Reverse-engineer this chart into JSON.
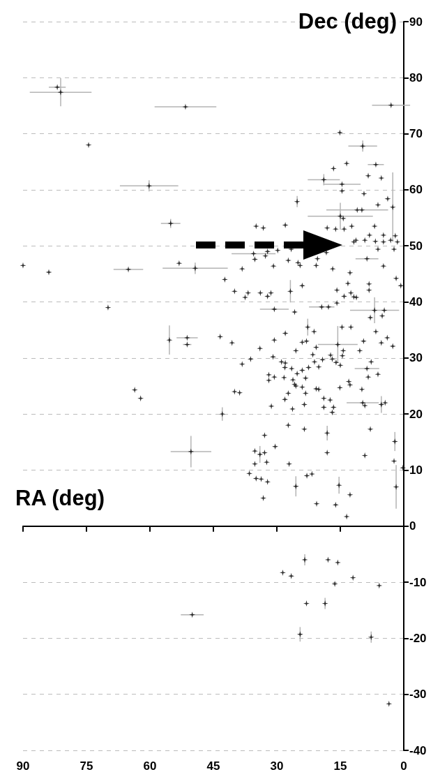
{
  "chart_data": {
    "type": "scatter",
    "xlabel": "RA (deg)",
    "ylabel": "Dec (deg)",
    "xlim": [
      90,
      0
    ],
    "xticks": [
      90,
      75,
      60,
      45,
      30,
      15,
      0
    ],
    "ylim": [
      -40,
      90
    ],
    "yticks": [
      -40,
      -30,
      -20,
      -10,
      0,
      10,
      20,
      30,
      40,
      50,
      60,
      70,
      80,
      90
    ],
    "grid": "y",
    "marker": "cross",
    "series": [
      {
        "color": "#000000",
        "x": [
          81.9,
          81.1,
          51.6,
          74.5,
          60.2,
          55.1,
          90,
          83.9,
          65.1,
          53.1,
          49.3,
          69.9,
          55.4,
          51.2,
          51.2,
          43.4,
          63.6,
          62.2,
          42.9,
          50.3,
          3.0,
          15.1,
          9.7,
          6.6,
          13.5,
          16.6,
          8.4,
          5.3,
          18.9,
          14.6,
          14.6,
          9.4,
          3.8,
          2.6,
          25.2,
          6.1,
          11.0,
          9.9,
          15.0,
          14.3,
          28.0,
          34.9,
          33.2,
          18.1,
          16.1,
          14.1,
          12.3,
          6.9,
          8.1,
          4.8,
          2.0,
          11.3,
          9.2,
          6.7,
          4.8,
          3.1,
          1.5,
          11.8,
          6.1,
          2.3,
          8.7,
          20.4,
          18.3,
          26.6,
          35.5,
          35.2,
          32.2,
          32.7,
          29.8,
          38.2,
          30.8,
          27.3,
          25.0,
          24.5,
          20.7,
          16.8,
          4.8,
          12.7,
          42.3,
          1.8,
          0.7,
          40.0,
          36.8,
          37.5,
          33.9,
          32.2,
          31.4,
          26.8,
          24.0,
          15.8,
          14.1,
          13.2,
          12.5,
          11.8,
          11.2,
          8.2,
          8.2,
          15.8,
          19.4,
          17.8,
          30.6,
          25.8,
          6.9,
          4.6,
          5.1,
          7.9,
          6.6,
          22.7,
          21.2,
          14.6,
          12.5,
          28.0,
          30.6,
          40.6,
          34.0,
          24.0,
          23.0,
          25.5,
          20.7,
          15.6,
          14.3,
          10.4,
          9.5,
          5.3,
          3.9,
          2.6,
          36.2,
          38.2,
          30.9,
          28.9,
          28.0,
          28.1,
          26.5,
          24.0,
          25.2,
          22.5,
          21.5,
          21.1,
          20.1,
          19.2,
          17.3,
          16.9,
          16.0,
          15.0,
          14.5,
          7.7,
          8.7,
          8.4,
          6.1,
          31.9,
          31.9,
          30.6,
          28.3,
          26.2,
          25.8,
          25.5,
          23.2,
          24.0,
          23.2,
          27.3,
          28.1,
          20.7,
          20.1,
          18.9,
          17.4,
          18.9,
          16.6,
          16.9,
          23.5,
          26.3,
          31.3,
          15.1,
          13.0,
          12.7,
          9.9,
          9.7,
          9.2,
          5.3,
          4.4,
          40.0,
          38.8,
          27.3,
          23.5,
          18.1,
          7.9,
          32.9,
          30.4,
          35.2,
          34.0,
          32.9,
          18.1,
          9.2,
          2.1,
          2.3,
          35.2,
          32.4,
          27.1,
          0.2,
          36.5,
          34.9,
          33.7,
          32.2,
          22.9,
          21.7,
          25.5,
          15.3,
          1.8,
          12.7,
          33.2,
          20.6,
          16.1,
          13.5,
          23.4,
          17.9,
          15.6,
          28.6,
          26.6,
          12.0,
          16.3,
          5.8,
          23.0,
          18.6,
          50.0,
          24.5,
          7.7,
          3.5
        ],
        "values": [
          78.3,
          77.4,
          74.8,
          68.0,
          60.7,
          54.0,
          46.5,
          45.3,
          45.8,
          46.9,
          46.0,
          39.0,
          33.2,
          33.6,
          32.4,
          33.8,
          24.3,
          22.8,
          20.0,
          13.3,
          75.1,
          70.2,
          67.8,
          64.5,
          64.7,
          63.8,
          62.5,
          62.1,
          61.8,
          61.0,
          59.8,
          59.3,
          58.4,
          56.9,
          57.9,
          57.3,
          56.4,
          56.4,
          55.3,
          54.9,
          53.7,
          53.5,
          53.2,
          53.2,
          53.0,
          53.0,
          53.5,
          53.5,
          51.9,
          51.9,
          51.8,
          51.0,
          51.0,
          50.8,
          50.7,
          51.0,
          50.7,
          50.7,
          49.4,
          49.4,
          47.7,
          47.7,
          48.8,
          49.4,
          48.6,
          47.6,
          49.0,
          48.2,
          49.2,
          45.9,
          46.4,
          47.4,
          47.0,
          46.5,
          46.5,
          45.9,
          46.4,
          45.2,
          44.0,
          44.2,
          42.9,
          41.9,
          41.6,
          40.8,
          41.6,
          41.0,
          41.6,
          41.9,
          42.9,
          42.1,
          41.0,
          43.3,
          41.6,
          40.9,
          40.8,
          43.2,
          42.1,
          39.8,
          39.1,
          39.1,
          38.7,
          38.2,
          38.5,
          38.5,
          37.5,
          37.2,
          34.7,
          35.5,
          34.7,
          35.5,
          35.5,
          34.4,
          33.2,
          32.7,
          31.7,
          32.8,
          33.0,
          31.3,
          31.9,
          32.4,
          31.3,
          31.3,
          33.0,
          32.7,
          33.6,
          32.1,
          29.8,
          28.9,
          30.2,
          29.3,
          29.1,
          28.3,
          28.1,
          27.8,
          27.2,
          28.3,
          30.6,
          29.3,
          28.4,
          29.7,
          30.5,
          29.8,
          29.2,
          28.7,
          30.4,
          29.3,
          28.1,
          26.6,
          27.1,
          27.0,
          26.0,
          26.6,
          26.5,
          26.1,
          25.3,
          25.0,
          26.4,
          24.8,
          23.7,
          23.7,
          22.6,
          24.5,
          24.4,
          22.8,
          22.5,
          21.2,
          21.2,
          20.3,
          21.7,
          20.9,
          21.4,
          24.7,
          25.8,
          25.2,
          24.4,
          22.0,
          21.5,
          21.7,
          22.0,
          24.0,
          23.8,
          18.0,
          17.3,
          16.6,
          17.3,
          16.2,
          14.2,
          13.4,
          12.8,
          13.1,
          13.1,
          12.6,
          15.1,
          11.6,
          11.1,
          11.4,
          11.1,
          10.4,
          9.4,
          8.5,
          8.4,
          7.9,
          9.0,
          9.3,
          7.1,
          7.3,
          7.0,
          5.6,
          5.0,
          4.0,
          3.8,
          1.7,
          -6.0,
          -6.0,
          -6.5,
          -8.3,
          -8.9,
          -9.2,
          -10.3,
          -10.6,
          -13.8,
          -13.8,
          -15.8,
          -19.3,
          -19.8,
          -31.7
        ],
        "xerrors": [
          2,
          7.3,
          7.3,
          null,
          6.9,
          2.3,
          null,
          null,
          3.5,
          null,
          7.7,
          null,
          null,
          2.5,
          1,
          null,
          null,
          null,
          null,
          4.8,
          4.5,
          null,
          3.4,
          1.9,
          null,
          null,
          null,
          null,
          3.8,
          4.4,
          null,
          null,
          null,
          null,
          null,
          null,
          7.3,
          null,
          7.7,
          null,
          null,
          null,
          null,
          null,
          null,
          null,
          null,
          null,
          null,
          null,
          null,
          null,
          null,
          null,
          null,
          null,
          null,
          null,
          null,
          null,
          2.7,
          null,
          null,
          null,
          5.2,
          null,
          null,
          null,
          null,
          null,
          null,
          null,
          null,
          null,
          null,
          null,
          null,
          null,
          null,
          null,
          null,
          null,
          null,
          null,
          null,
          null,
          null,
          null,
          null,
          null,
          null,
          null,
          null,
          null,
          null,
          null,
          null,
          null,
          3,
          null,
          3.4,
          null,
          5.8,
          null,
          null,
          null,
          null,
          null,
          null,
          null,
          null,
          null,
          null,
          null,
          null,
          null,
          null,
          null,
          null,
          4.7,
          null,
          null,
          null,
          null,
          null,
          null,
          null,
          null,
          null,
          null,
          null,
          null,
          null,
          null,
          null,
          null,
          null,
          null,
          null,
          null,
          null,
          null,
          null,
          null,
          null,
          null,
          2.9,
          null,
          null,
          null,
          null,
          null,
          null,
          null,
          null,
          null,
          null,
          null,
          null,
          null,
          null,
          null,
          null,
          null,
          null,
          null,
          null,
          null,
          null,
          null,
          null,
          null,
          null,
          null,
          null,
          3.8,
          null,
          null,
          null,
          null,
          null,
          null,
          null,
          null,
          null,
          null,
          null,
          null,
          null,
          null,
          null,
          null,
          null,
          null,
          null,
          null,
          null,
          null,
          null,
          null,
          null,
          null,
          null,
          null,
          null,
          null,
          null,
          null,
          null,
          null,
          null,
          null,
          null,
          null,
          null,
          null,
          null,
          null,
          null,
          null,
          null,
          null,
          2.7,
          null,
          null,
          null
        ],
        "errors": [
          null,
          2.5,
          null,
          null,
          1,
          0.8,
          null,
          null,
          null,
          null,
          1,
          null,
          2.6,
          null,
          null,
          null,
          null,
          null,
          1.2,
          2.8,
          null,
          null,
          1,
          null,
          null,
          null,
          null,
          null,
          1,
          null,
          null,
          null,
          null,
          6.2,
          1,
          null,
          null,
          null,
          2.4,
          null,
          null,
          null,
          null,
          null,
          null,
          null,
          null,
          null,
          null,
          null,
          null,
          null,
          null,
          null,
          null,
          null,
          null,
          null,
          null,
          null,
          null,
          null,
          null,
          null,
          null,
          null,
          null,
          null,
          null,
          null,
          null,
          null,
          null,
          null,
          null,
          null,
          null,
          null,
          null,
          null,
          null,
          null,
          null,
          null,
          null,
          null,
          null,
          2,
          null,
          null,
          null,
          null,
          null,
          null,
          null,
          null,
          null,
          null,
          null,
          null,
          null,
          null,
          2.3,
          null,
          null,
          null,
          null,
          1.5,
          null,
          null,
          null,
          null,
          null,
          null,
          null,
          null,
          null,
          null,
          null,
          3.3,
          null,
          null,
          null,
          null,
          null,
          null,
          null,
          null,
          null,
          null,
          null,
          null,
          null,
          null,
          null,
          null,
          null,
          null,
          null,
          null,
          null,
          null,
          null,
          null,
          null,
          null,
          null,
          null,
          null,
          null,
          null,
          null,
          null,
          null,
          null,
          null,
          null,
          null,
          null,
          null,
          null,
          null,
          null,
          null,
          null,
          null,
          null,
          null,
          null,
          null,
          null,
          null,
          null,
          null,
          null,
          null,
          null,
          1.5,
          null,
          null,
          null,
          null,
          null,
          1.3,
          null,
          null,
          null,
          null,
          1.5,
          null,
          null,
          null,
          1.7,
          null,
          null,
          null,
          null,
          null,
          null,
          null,
          null,
          null,
          null,
          null,
          1.8,
          1.5,
          3.9,
          null,
          null,
          null,
          null,
          null,
          1,
          null,
          null,
          null,
          null,
          null,
          null,
          null,
          null,
          1,
          null,
          1.3,
          1,
          null
        ]
      }
    ]
  }
}
